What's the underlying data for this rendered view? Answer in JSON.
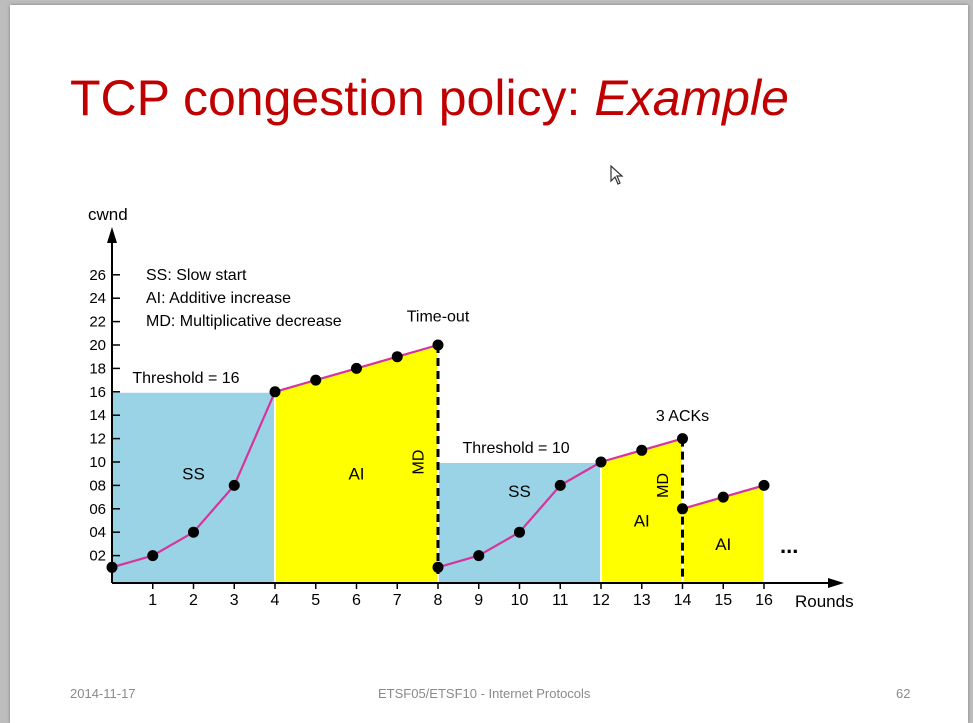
{
  "slide": {
    "title_main": "TCP congestion policy: ",
    "title_emphasis": "Example"
  },
  "footer": {
    "date": "2014-11-17",
    "course": "ETSF05/ETSF10 - Internet Protocols",
    "page": "62"
  },
  "chart_data": {
    "type": "line",
    "title": "",
    "xlabel": "Rounds",
    "ylabel": "cwnd",
    "xlim": [
      0,
      16
    ],
    "ylim": [
      0,
      26
    ],
    "x_ticks": [
      1,
      2,
      3,
      4,
      5,
      6,
      7,
      8,
      9,
      10,
      11,
      12,
      13,
      14,
      15,
      16
    ],
    "y_ticks": [
      {
        "value": 2,
        "label": "02"
      },
      {
        "value": 4,
        "label": "04"
      },
      {
        "value": 6,
        "label": "06"
      },
      {
        "value": 8,
        "label": "08"
      },
      {
        "value": 10,
        "label": "10"
      },
      {
        "value": 12,
        "label": "12"
      },
      {
        "value": 14,
        "label": "14"
      },
      {
        "value": 16,
        "label": "16"
      },
      {
        "value": 18,
        "label": "18"
      },
      {
        "value": 20,
        "label": "20"
      },
      {
        "value": 22,
        "label": "22"
      },
      {
        "value": 24,
        "label": "24"
      },
      {
        "value": 26,
        "label": "26"
      }
    ],
    "legend": [
      "SS: Slow start",
      "AI: Additive increase",
      "MD: Multiplicative decrease"
    ],
    "series": [
      {
        "name": "cwnd",
        "x": [
          0,
          1,
          2,
          3,
          4,
          5,
          6,
          7,
          8,
          8,
          9,
          10,
          11,
          12,
          13,
          14,
          14,
          15,
          16
        ],
        "y": [
          1,
          2,
          4,
          8,
          16,
          17,
          18,
          19,
          20,
          1,
          2,
          4,
          8,
          10,
          11,
          12,
          6,
          7,
          8
        ]
      }
    ],
    "regions": [
      {
        "label": "SS",
        "kind": "ss",
        "x": [
          0,
          1,
          2,
          3,
          4
        ],
        "top": [
          16,
          16,
          16,
          16,
          16
        ],
        "label_x": 2,
        "label_y": 8.5
      },
      {
        "label": "AI",
        "kind": "ai",
        "x": [
          4,
          5,
          6,
          7,
          8
        ],
        "top": [
          16,
          17,
          18,
          19,
          20
        ],
        "label_x": 6,
        "label_y": 8.5
      },
      {
        "label": "SS",
        "kind": "ss",
        "x": [
          8,
          9,
          10,
          11,
          12
        ],
        "top": [
          10,
          10,
          10,
          10,
          10
        ],
        "label_x": 10,
        "label_y": 7
      },
      {
        "label": "AI",
        "kind": "ai",
        "x": [
          12,
          13,
          14
        ],
        "top": [
          10,
          11,
          12
        ],
        "label_x": 13,
        "label_y": 4.5
      },
      {
        "label": "AI",
        "kind": "ai",
        "x": [
          14,
          15,
          16
        ],
        "top": [
          6,
          7,
          8
        ],
        "label_x": 15,
        "label_y": 2.5
      }
    ],
    "thresholds": [
      {
        "label": "Threshold = 16",
        "value": 16,
        "label_x": 0.5
      },
      {
        "label": "Threshold = 10",
        "value": 10,
        "label_x": 8.6
      }
    ],
    "events": [
      {
        "label": "Time-out",
        "x": 8,
        "y_top": 20,
        "label_y": 22
      },
      {
        "label": "3 ACKs",
        "x": 14,
        "y_top": 12,
        "label_y": 13.5
      }
    ],
    "md_labels": [
      {
        "label": "MD",
        "x": 7.65,
        "y": 10
      },
      {
        "label": "MD",
        "x": 13.65,
        "y": 8
      }
    ],
    "ellipsis": "...",
    "colors": {
      "ss_fill": "#9bd3e6",
      "ai_fill": "#ffff00",
      "line": "#d6349c",
      "point": "#000000",
      "title": "#c00000"
    }
  }
}
